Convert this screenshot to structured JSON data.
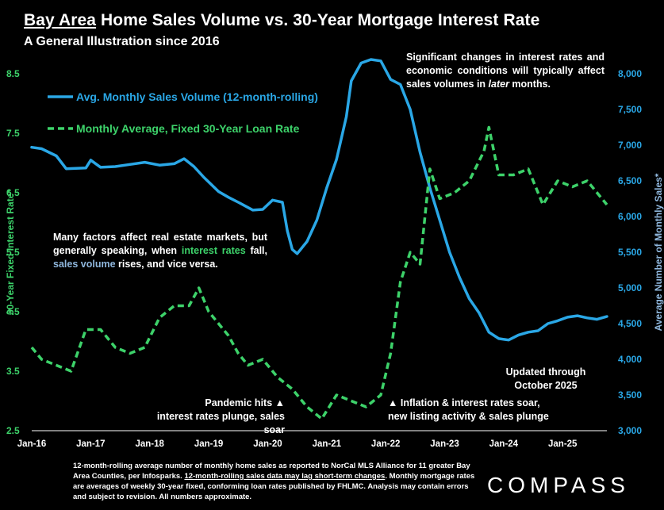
{
  "title": {
    "part1": "Bay Area",
    "part2": "Home Sales Volume vs. 30-Year Mortgage Interest Rate"
  },
  "subtitle": "A General Illustration since 2016",
  "notes": {
    "top": {
      "a": "Significant changes in interest rates and economic conditions will typically affect sales volumes in ",
      "b": "later",
      "c": " months."
    },
    "mid": {
      "a": "Many factors affect real estate markets, but generally speaking, when ",
      "b": "interest rates",
      "c": " fall, ",
      "d": "sales volume",
      "e": " rises, and vice versa."
    },
    "updated": {
      "line1": "Updated through",
      "line2": "October 2025"
    },
    "pandemic": {
      "line1": "Pandemic hits ▲",
      "line2": "interest rates plunge, sales soar"
    },
    "inflation": {
      "line1": "▲ Inflation & interest rates soar,",
      "line2": "new listing activity & sales plunge"
    }
  },
  "footnote": {
    "a": "12-month-rolling average number of monthly home sales as reported to NorCal MLS Alliance for 11 greater Bay Area Counties, per Infosparks. ",
    "b": "12-month-rolling sales data may lag short-term changes",
    "c": ". Monthly mortgage rates are averages of weekly 30-year fixed, conforming loan rates published by FHLMC. Analysis may contain errors and subject to revision. All numbers  approximate."
  },
  "logo": "COMPASS",
  "colors": {
    "sales": "#2aa7e6",
    "rate": "#3dd26a",
    "background": "#000000",
    "text": "#ffffff"
  },
  "chart_data": {
    "type": "line",
    "x_ticks": [
      "Jan-16",
      "Jan-17",
      "Jan-18",
      "Jan-19",
      "Jan-20",
      "Jan-21",
      "Jan-22",
      "Jan-23",
      "Jan-24",
      "Jan-25"
    ],
    "x_range": [
      "2016-01",
      "2025-10"
    ],
    "y_left": {
      "label": "30-Year Fixed Interest Rate*",
      "range": [
        2.5,
        8.5
      ],
      "ticks": [
        "2.5",
        "3.5",
        "4.5",
        "5.5",
        "6.5",
        "7.5",
        "8.5"
      ]
    },
    "y_right": {
      "label": "Average Number of Monthly Sales*",
      "range": [
        3000,
        8000
      ],
      "ticks": [
        "3,000",
        "3,500",
        "4,000",
        "4,500",
        "5,000",
        "5,500",
        "6,000",
        "6,500",
        "7,000",
        "7,500",
        "8,000"
      ]
    },
    "legend_placement": "top-left",
    "series": [
      {
        "name": "Avg. Monthly Sales Volume (12-month-rolling)",
        "axis": "right",
        "style": "solid",
        "points": [
          [
            "2016-01",
            6970
          ],
          [
            "2016-03",
            6950
          ],
          [
            "2016-06",
            6850
          ],
          [
            "2016-08",
            6670
          ],
          [
            "2016-12",
            6680
          ],
          [
            "2017-01",
            6790
          ],
          [
            "2017-03",
            6690
          ],
          [
            "2017-06",
            6700
          ],
          [
            "2017-09",
            6730
          ],
          [
            "2017-12",
            6760
          ],
          [
            "2018-03",
            6720
          ],
          [
            "2018-06",
            6740
          ],
          [
            "2018-08",
            6810
          ],
          [
            "2018-10",
            6700
          ],
          [
            "2018-12",
            6550
          ],
          [
            "2019-03",
            6350
          ],
          [
            "2019-05",
            6270
          ],
          [
            "2019-07",
            6200
          ],
          [
            "2019-10",
            6090
          ],
          [
            "2019-12",
            6100
          ],
          [
            "2020-02",
            6230
          ],
          [
            "2020-04",
            6200
          ],
          [
            "2020-05",
            5800
          ],
          [
            "2020-06",
            5540
          ],
          [
            "2020-07",
            5480
          ],
          [
            "2020-09",
            5650
          ],
          [
            "2020-11",
            5950
          ],
          [
            "2021-01",
            6400
          ],
          [
            "2021-03",
            6800
          ],
          [
            "2021-05",
            7400
          ],
          [
            "2021-06",
            7900
          ],
          [
            "2021-08",
            8150
          ],
          [
            "2021-10",
            8200
          ],
          [
            "2021-12",
            8180
          ],
          [
            "2022-02",
            7920
          ],
          [
            "2022-04",
            7850
          ],
          [
            "2022-06",
            7500
          ],
          [
            "2022-08",
            6900
          ],
          [
            "2022-10",
            6400
          ],
          [
            "2022-12",
            5950
          ],
          [
            "2023-02",
            5500
          ],
          [
            "2023-04",
            5150
          ],
          [
            "2023-06",
            4850
          ],
          [
            "2023-08",
            4650
          ],
          [
            "2023-10",
            4380
          ],
          [
            "2023-12",
            4290
          ],
          [
            "2024-02",
            4270
          ],
          [
            "2024-04",
            4340
          ],
          [
            "2024-06",
            4380
          ],
          [
            "2024-08",
            4400
          ],
          [
            "2024-10",
            4500
          ],
          [
            "2024-12",
            4540
          ],
          [
            "2025-02",
            4590
          ],
          [
            "2025-04",
            4610
          ],
          [
            "2025-06",
            4580
          ],
          [
            "2025-08",
            4560
          ],
          [
            "2025-10",
            4600
          ]
        ]
      },
      {
        "name": "Monthly Average, Fixed 30-Year Loan Rate",
        "axis": "left",
        "style": "dashed",
        "points": [
          [
            "2016-01",
            3.9
          ],
          [
            "2016-03",
            3.7
          ],
          [
            "2016-06",
            3.6
          ],
          [
            "2016-09",
            3.5
          ],
          [
            "2016-12",
            4.2
          ],
          [
            "2017-03",
            4.2
          ],
          [
            "2017-06",
            3.9
          ],
          [
            "2017-09",
            3.8
          ],
          [
            "2017-12",
            3.9
          ],
          [
            "2018-03",
            4.4
          ],
          [
            "2018-06",
            4.6
          ],
          [
            "2018-09",
            4.6
          ],
          [
            "2018-11",
            4.9
          ],
          [
            "2019-01",
            4.5
          ],
          [
            "2019-03",
            4.3
          ],
          [
            "2019-05",
            4.1
          ],
          [
            "2019-07",
            3.8
          ],
          [
            "2019-09",
            3.6
          ],
          [
            "2019-12",
            3.7
          ],
          [
            "2020-03",
            3.4
          ],
          [
            "2020-06",
            3.2
          ],
          [
            "2020-09",
            2.9
          ],
          [
            "2020-12",
            2.7
          ],
          [
            "2021-03",
            3.1
          ],
          [
            "2021-06",
            3.0
          ],
          [
            "2021-09",
            2.9
          ],
          [
            "2021-12",
            3.1
          ],
          [
            "2022-02",
            3.8
          ],
          [
            "2022-04",
            5.0
          ],
          [
            "2022-06",
            5.5
          ],
          [
            "2022-08",
            5.3
          ],
          [
            "2022-10",
            6.9
          ],
          [
            "2022-12",
            6.4
          ],
          [
            "2023-03",
            6.5
          ],
          [
            "2023-06",
            6.7
          ],
          [
            "2023-09",
            7.2
          ],
          [
            "2023-10",
            7.6
          ],
          [
            "2023-12",
            6.8
          ],
          [
            "2024-03",
            6.8
          ],
          [
            "2024-06",
            6.9
          ],
          [
            "2024-09",
            6.3
          ],
          [
            "2024-12",
            6.7
          ],
          [
            "2025-03",
            6.6
          ],
          [
            "2025-06",
            6.7
          ],
          [
            "2025-10",
            6.3
          ]
        ]
      }
    ]
  }
}
